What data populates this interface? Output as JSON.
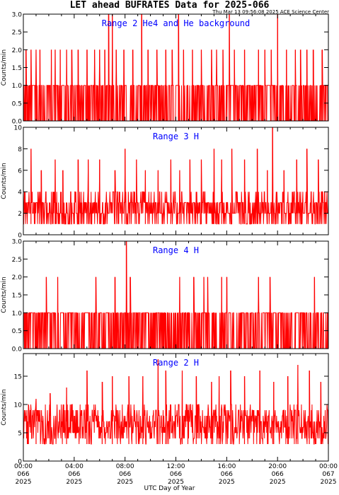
{
  "header": {
    "title": "LET ahead BUFRATES Data for 2025-066",
    "timestamp": "Thu Mar 13 09:56:08 2025 ACE Science Center"
  },
  "xaxis": {
    "label": "UTC Day of Year",
    "ticks": [
      {
        "time": "00:00",
        "day": "066",
        "year": "2025"
      },
      {
        "time": "04:00",
        "day": "066",
        "year": "2025"
      },
      {
        "time": "08:00",
        "day": "066",
        "year": "2025"
      },
      {
        "time": "12:00",
        "day": "066",
        "year": "2025"
      },
      {
        "time": "16:00",
        "day": "066",
        "year": "2025"
      },
      {
        "time": "20:00",
        "day": "066",
        "year": "2025"
      },
      {
        "time": "00:00",
        "day": "067",
        "year": "2025"
      }
    ]
  },
  "colors": {
    "series": "#ff0000",
    "panel_title": "#0000ff",
    "axes": "#000000"
  },
  "chart_data": [
    {
      "type": "line",
      "title": "Range 2 He4 and He background",
      "ylabel": "Counts/min",
      "ylim": [
        0,
        3
      ],
      "yticks": [
        "0.0",
        "0.5",
        "1.0",
        "1.5",
        "2.0",
        "2.5",
        "3.0"
      ],
      "xlim_hours": [
        0,
        24
      ],
      "baseline": [
        0,
        1
      ],
      "spikes": [
        {
          "hour": 0.2,
          "value": 2
        },
        {
          "hour": 0.6,
          "value": 2
        },
        {
          "hour": 1.0,
          "value": 2
        },
        {
          "hour": 1.3,
          "value": 2
        },
        {
          "hour": 2.2,
          "value": 2
        },
        {
          "hour": 2.5,
          "value": 2
        },
        {
          "hour": 2.9,
          "value": 2
        },
        {
          "hour": 3.4,
          "value": 2
        },
        {
          "hour": 3.8,
          "value": 2
        },
        {
          "hour": 4.3,
          "value": 2
        },
        {
          "hour": 5.0,
          "value": 2
        },
        {
          "hour": 5.6,
          "value": 2
        },
        {
          "hour": 6.0,
          "value": 2
        },
        {
          "hour": 6.4,
          "value": 2
        },
        {
          "hour": 6.7,
          "value": 3
        },
        {
          "hour": 7.0,
          "value": 3
        },
        {
          "hour": 7.3,
          "value": 2
        },
        {
          "hour": 7.9,
          "value": 2
        },
        {
          "hour": 8.6,
          "value": 2
        },
        {
          "hour": 9.3,
          "value": 3
        },
        {
          "hour": 9.8,
          "value": 2
        },
        {
          "hour": 10.5,
          "value": 2
        },
        {
          "hour": 11.2,
          "value": 2
        },
        {
          "hour": 11.7,
          "value": 2
        },
        {
          "hour": 12.2,
          "value": 3
        },
        {
          "hour": 12.6,
          "value": 2
        },
        {
          "hour": 13.3,
          "value": 2
        },
        {
          "hour": 14.0,
          "value": 2
        },
        {
          "hour": 14.8,
          "value": 2
        },
        {
          "hour": 15.2,
          "value": 2
        },
        {
          "hour": 15.7,
          "value": 2
        },
        {
          "hour": 16.2,
          "value": 3
        },
        {
          "hour": 16.6,
          "value": 2
        },
        {
          "hour": 17.4,
          "value": 2
        },
        {
          "hour": 18.5,
          "value": 2
        },
        {
          "hour": 19.0,
          "value": 2
        },
        {
          "hour": 19.5,
          "value": 2
        },
        {
          "hour": 20.0,
          "value": 3
        },
        {
          "hour": 20.7,
          "value": 2
        },
        {
          "hour": 21.4,
          "value": 2
        },
        {
          "hour": 21.8,
          "value": 2
        },
        {
          "hour": 22.3,
          "value": 2
        },
        {
          "hour": 22.8,
          "value": 2
        },
        {
          "hour": 23.5,
          "value": 2
        }
      ]
    },
    {
      "type": "line",
      "title": "Range 3 H",
      "ylabel": "Counts/min",
      "ylim": [
        0,
        10
      ],
      "yticks": [
        "0",
        "2",
        "4",
        "6",
        "8",
        "10"
      ],
      "xlim_hours": [
        0,
        24
      ],
      "baseline": [
        1,
        4
      ],
      "spikes": [
        {
          "hour": 0.6,
          "value": 8
        },
        {
          "hour": 1.4,
          "value": 6
        },
        {
          "hour": 2.5,
          "value": 7
        },
        {
          "hour": 3.1,
          "value": 6
        },
        {
          "hour": 4.3,
          "value": 7
        },
        {
          "hour": 5.1,
          "value": 7
        },
        {
          "hour": 6.0,
          "value": 7
        },
        {
          "hour": 7.2,
          "value": 6
        },
        {
          "hour": 8.0,
          "value": 8
        },
        {
          "hour": 8.9,
          "value": 7
        },
        {
          "hour": 9.6,
          "value": 6
        },
        {
          "hour": 10.6,
          "value": 6
        },
        {
          "hour": 11.6,
          "value": 7
        },
        {
          "hour": 12.3,
          "value": 6
        },
        {
          "hour": 13.1,
          "value": 7
        },
        {
          "hour": 14.0,
          "value": 7
        },
        {
          "hour": 15.0,
          "value": 8
        },
        {
          "hour": 15.6,
          "value": 7
        },
        {
          "hour": 16.4,
          "value": 8
        },
        {
          "hour": 17.4,
          "value": 7
        },
        {
          "hour": 18.4,
          "value": 8
        },
        {
          "hour": 19.2,
          "value": 6
        },
        {
          "hour": 19.6,
          "value": 10
        },
        {
          "hour": 20.5,
          "value": 6
        },
        {
          "hour": 21.5,
          "value": 7
        },
        {
          "hour": 22.3,
          "value": 8
        },
        {
          "hour": 23.2,
          "value": 7
        }
      ]
    },
    {
      "type": "line",
      "title": "Range 4 H",
      "ylabel": "Counts/min",
      "ylim": [
        0,
        3
      ],
      "yticks": [
        "0.0",
        "0.5",
        "1.0",
        "1.5",
        "2.0",
        "2.5",
        "3.0"
      ],
      "xlim_hours": [
        0,
        24
      ],
      "baseline": [
        0,
        1
      ],
      "spikes": [
        {
          "hour": 0.2,
          "value": 1
        },
        {
          "hour": 1.8,
          "value": 2
        },
        {
          "hour": 2.7,
          "value": 2
        },
        {
          "hour": 5.7,
          "value": 2
        },
        {
          "hour": 7.2,
          "value": 2
        },
        {
          "hour": 8.1,
          "value": 3
        },
        {
          "hour": 8.4,
          "value": 2
        },
        {
          "hour": 12.3,
          "value": 2
        },
        {
          "hour": 13.4,
          "value": 2
        },
        {
          "hour": 14.2,
          "value": 2
        },
        {
          "hour": 14.5,
          "value": 2
        },
        {
          "hour": 15.6,
          "value": 2
        },
        {
          "hour": 16.0,
          "value": 2
        },
        {
          "hour": 18.5,
          "value": 2
        },
        {
          "hour": 19.4,
          "value": 2
        },
        {
          "hour": 22.9,
          "value": 2
        }
      ]
    },
    {
      "type": "line",
      "title": "Range 2 H",
      "ylabel": "Counts/min",
      "ylim": [
        0,
        19
      ],
      "yticks": [
        "0",
        "5",
        "10",
        "15"
      ],
      "xlim_hours": [
        0,
        24
      ],
      "baseline": [
        3,
        10
      ],
      "spikes": [
        {
          "hour": 0.4,
          "value": 10
        },
        {
          "hour": 1.0,
          "value": 11
        },
        {
          "hour": 2.1,
          "value": 12
        },
        {
          "hour": 3.4,
          "value": 13
        },
        {
          "hour": 5.0,
          "value": 16
        },
        {
          "hour": 6.2,
          "value": 14
        },
        {
          "hour": 7.0,
          "value": 15
        },
        {
          "hour": 8.3,
          "value": 15
        },
        {
          "hour": 9.4,
          "value": 15
        },
        {
          "hour": 10.6,
          "value": 18
        },
        {
          "hour": 11.2,
          "value": 16
        },
        {
          "hour": 12.5,
          "value": 16
        },
        {
          "hour": 13.6,
          "value": 15
        },
        {
          "hour": 14.8,
          "value": 14
        },
        {
          "hour": 15.4,
          "value": 15
        },
        {
          "hour": 16.3,
          "value": 16
        },
        {
          "hour": 17.4,
          "value": 15
        },
        {
          "hour": 18.6,
          "value": 16
        },
        {
          "hour": 19.7,
          "value": 14
        },
        {
          "hour": 20.8,
          "value": 15
        },
        {
          "hour": 21.6,
          "value": 17
        },
        {
          "hour": 22.5,
          "value": 16
        },
        {
          "hour": 23.4,
          "value": 14
        }
      ]
    }
  ]
}
